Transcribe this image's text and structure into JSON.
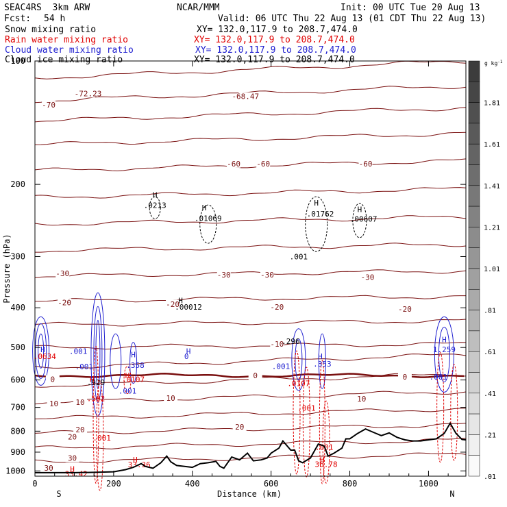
{
  "header": {
    "model": "SEAC4RS  3km ARW",
    "center": "NCAR/MMM",
    "init": "Init: 00 UTC Tue 20 Aug 13",
    "fcst_label": "Fcst:",
    "fcst_value": "54 h",
    "valid": "Valid: 06 UTC Thu 22 Aug 13 (01 CDT Thu 22 Aug 13)"
  },
  "legend": [
    {
      "name": "Snow mixing ratio",
      "xy": "XY= 132.0,117.9 to 208.7,474.0",
      "color": "#000000"
    },
    {
      "name": "Rain water mixing ratio",
      "xy": "XY= 132.0,117.9 to 208.7,474.0",
      "color": "#e00000"
    },
    {
      "name": "Cloud water mixing ratio",
      "xy": "XY= 132.0,117.9 to 208.7,474.0",
      "color": "#2020d0"
    },
    {
      "name": "Cloud ice mixing ratio",
      "xy": "XY= 132.0,117.9 to 208.7,474.0",
      "color": "#000000"
    }
  ],
  "colorbar": {
    "unit": "g kg",
    "unit_exp": "-1",
    "labels": [
      "1.81",
      "1.61",
      "1.41",
      "1.21",
      "1.01",
      ".81",
      ".61",
      ".41",
      ".21",
      ".01"
    ]
  },
  "chart_data": {
    "type": "contour_cross_section",
    "xlabel": "Distance (km)",
    "ylabel": "Pressure (hPa)",
    "x_ticks": [
      "0",
      "200",
      "400",
      "600",
      "800",
      "1000"
    ],
    "y_ticks": [
      "100",
      "200",
      "300",
      "400",
      "500",
      "600",
      "700",
      "800",
      "900",
      "1000"
    ],
    "xlim": [
      0,
      1095
    ],
    "ylim": [
      1030,
      100
    ],
    "y_scale": "log",
    "x_end_labels": {
      "left": "S",
      "right": "N"
    },
    "isotherm_labels": [
      {
        "text": "-70",
        "x": 35,
        "p": 128
      },
      {
        "text": "-72.23",
        "x": 135,
        "p": 120
      },
      {
        "text": "-68.47",
        "x": 535,
        "p": 122
      },
      {
        "text": "-60",
        "x": 505,
        "p": 178
      },
      {
        "text": "-60",
        "x": 580,
        "p": 178
      },
      {
        "text": "-60",
        "x": 840,
        "p": 178
      },
      {
        "text": "-30",
        "x": 70,
        "p": 330
      },
      {
        "text": "-30",
        "x": 480,
        "p": 332
      },
      {
        "text": "-30",
        "x": 590,
        "p": 332
      },
      {
        "text": "-30",
        "x": 845,
        "p": 337
      },
      {
        "text": "-20",
        "x": 75,
        "p": 388
      },
      {
        "text": "-20",
        "x": 350,
        "p": 392
      },
      {
        "text": "-20",
        "x": 615,
        "p": 398
      },
      {
        "text": "-20",
        "x": 940,
        "p": 403
      },
      {
        "text": "-10",
        "x": 615,
        "p": 490
      },
      {
        "text": "0",
        "x": 45,
        "p": 598
      },
      {
        "text": "0",
        "x": 560,
        "p": 585
      },
      {
        "text": "0",
        "x": 940,
        "p": 590
      },
      {
        "text": "10",
        "x": 48,
        "p": 685
      },
      {
        "text": "10",
        "x": 115,
        "p": 680
      },
      {
        "text": "10",
        "x": 345,
        "p": 664
      },
      {
        "text": "10",
        "x": 830,
        "p": 667
      },
      {
        "text": "20",
        "x": 115,
        "p": 793
      },
      {
        "text": "20",
        "x": 520,
        "p": 780
      },
      {
        "text": "20",
        "x": 95,
        "p": 826
      },
      {
        "text": "30",
        "x": 95,
        "p": 930
      },
      {
        "text": "30",
        "x": 35,
        "p": 983
      }
    ],
    "extrema_labels": [
      {
        "text": "H",
        "x": 305,
        "p": 212,
        "color": "#000000"
      },
      {
        "text": ".0213",
        "x": 305,
        "p": 225,
        "color": "#000000"
      },
      {
        "text": "H",
        "x": 430,
        "p": 228,
        "color": "#000000"
      },
      {
        "text": ".01069",
        "x": 440,
        "p": 242,
        "color": "#000000"
      },
      {
        "text": "H",
        "x": 715,
        "p": 222,
        "color": "#000000"
      },
      {
        "text": ".01762",
        "x": 725,
        "p": 236,
        "color": "#000000"
      },
      {
        "text": "H",
        "x": 825,
        "p": 230,
        "color": "#000000"
      },
      {
        "text": ".00607",
        "x": 835,
        "p": 243,
        "color": "#000000"
      },
      {
        "text": ".001",
        "x": 670,
        "p": 300,
        "color": "#000000"
      },
      {
        "text": "H",
        "x": 370,
        "p": 384,
        "color": "#000000"
      },
      {
        "text": ".00012",
        "x": 390,
        "p": 398,
        "color": "#000000"
      },
      {
        "text": "H",
        "x": 20,
        "p": 505,
        "color": "#2020d0"
      },
      {
        "text": ".0634",
        "x": 25,
        "p": 525,
        "color": "#e00000"
      },
      {
        "text": ".001",
        "x": 110,
        "p": 510,
        "color": "#2020d0"
      },
      {
        "text": ".001",
        "x": 125,
        "p": 556,
        "color": "#2020d0"
      },
      {
        "text": "H",
        "x": 250,
        "p": 520,
        "color": "#2020d0"
      },
      {
        "text": ".358",
        "x": 255,
        "p": 552,
        "color": "#2020d0"
      },
      {
        "text": "H",
        "x": 390,
        "p": 510,
        "color": "#2020d0"
      },
      {
        "text": "0",
        "x": 385,
        "p": 525,
        "color": "#2020d0"
      },
      {
        "text": ".296",
        "x": 650,
        "p": 483,
        "color": "#000000"
      },
      {
        "text": ".001",
        "x": 625,
        "p": 555,
        "color": "#2020d0"
      },
      {
        "text": "H",
        "x": 725,
        "p": 525,
        "color": "#2020d0"
      },
      {
        "text": ".353",
        "x": 730,
        "p": 548,
        "color": "#2020d0"
      },
      {
        "text": "H",
        "x": 1040,
        "p": 478,
        "color": "#2020d0"
      },
      {
        "text": "1.259",
        "x": 1040,
        "p": 505,
        "color": "#2020d0"
      },
      {
        "text": ".001",
        "x": 1025,
        "p": 590,
        "color": "#2020d0"
      },
      {
        "text": "H",
        "x": 145,
        "p": 598,
        "color": "#e00000"
      },
      {
        "text": ".929",
        "x": 155,
        "p": 608,
        "color": "#000000"
      },
      {
        "text": "H",
        "x": 235,
        "p": 585,
        "color": "#e00000"
      },
      {
        "text": ".0107",
        "x": 250,
        "p": 598,
        "color": "#e00000"
      },
      {
        "text": ".001",
        "x": 235,
        "p": 638,
        "color": "#2020d0"
      },
      {
        "text": ".502",
        "x": 155,
        "p": 665,
        "color": "#e00000"
      },
      {
        "text": ".0107",
        "x": 670,
        "p": 612,
        "color": "#e00000"
      },
      {
        "text": ".001",
        "x": 690,
        "p": 703,
        "color": "#e00000"
      },
      {
        "text": ".001",
        "x": 170,
        "p": 830,
        "color": "#e00000"
      },
      {
        "text": ".001",
        "x": 735,
        "p": 874,
        "color": "#e00000"
      },
      {
        "text": "H",
        "x": 255,
        "p": 940,
        "color": "#e00000"
      },
      {
        "text": "33.36",
        "x": 265,
        "p": 965,
        "color": "#e00000"
      },
      {
        "text": "H",
        "x": 730,
        "p": 940,
        "color": "#e00000"
      },
      {
        "text": "36.78",
        "x": 740,
        "p": 962,
        "color": "#e00000"
      },
      {
        "text": "H",
        "x": 95,
        "p": 990,
        "color": "#e00000"
      },
      {
        "text": "33.42",
        "x": 105,
        "p": 1017,
        "color": "#e00000"
      }
    ],
    "terrain_pressure": [
      [
        0,
        1010
      ],
      [
        30,
        1010
      ],
      [
        60,
        1010
      ],
      [
        100,
        1010
      ],
      [
        150,
        1008
      ],
      [
        200,
        1005
      ],
      [
        230,
        993
      ],
      [
        250,
        980
      ],
      [
        270,
        960
      ],
      [
        280,
        975
      ],
      [
        300,
        985
      ],
      [
        320,
        955
      ],
      [
        335,
        920
      ],
      [
        345,
        950
      ],
      [
        360,
        970
      ],
      [
        380,
        975
      ],
      [
        400,
        980
      ],
      [
        420,
        960
      ],
      [
        440,
        955
      ],
      [
        460,
        948
      ],
      [
        470,
        975
      ],
      [
        480,
        985
      ],
      [
        500,
        925
      ],
      [
        520,
        940
      ],
      [
        540,
        905
      ],
      [
        555,
        945
      ],
      [
        575,
        940
      ],
      [
        590,
        930
      ],
      [
        600,
        905
      ],
      [
        620,
        880
      ],
      [
        630,
        845
      ],
      [
        650,
        890
      ],
      [
        660,
        890
      ],
      [
        670,
        945
      ],
      [
        680,
        955
      ],
      [
        700,
        930
      ],
      [
        720,
        860
      ],
      [
        735,
        870
      ],
      [
        745,
        920
      ],
      [
        760,
        905
      ],
      [
        780,
        880
      ],
      [
        790,
        835
      ],
      [
        800,
        835
      ],
      [
        820,
        810
      ],
      [
        840,
        790
      ],
      [
        860,
        805
      ],
      [
        880,
        820
      ],
      [
        900,
        808
      ],
      [
        920,
        828
      ],
      [
        940,
        840
      ],
      [
        960,
        845
      ],
      [
        980,
        845
      ],
      [
        1000,
        840
      ],
      [
        1020,
        835
      ],
      [
        1040,
        810
      ],
      [
        1055,
        765
      ],
      [
        1070,
        810
      ],
      [
        1085,
        838
      ],
      [
        1095,
        840
      ]
    ]
  }
}
